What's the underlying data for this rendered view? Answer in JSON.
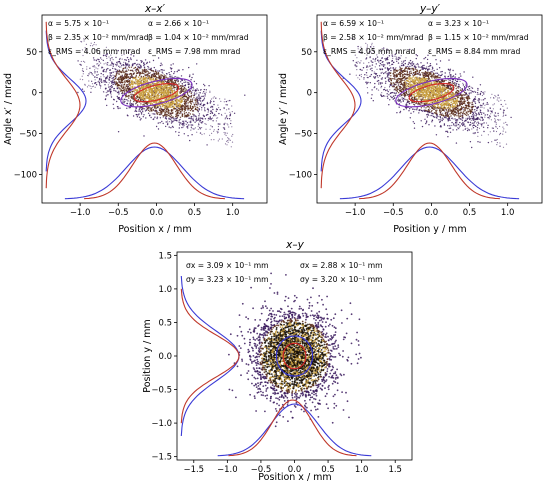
{
  "chart_data": [
    {
      "type": "scatter",
      "title": "x–x′",
      "xlabel": "Position x / mm",
      "ylabel": "Angle x′ / mrad",
      "xlim": [
        -1.5,
        1.45
      ],
      "ylim": [
        -135,
        95
      ],
      "xticks": [
        -1.0,
        -0.5,
        0.0,
        0.5,
        1.0
      ],
      "xticklabels": [
        "−1.0",
        "−0.5",
        "0.0",
        "0.5",
        "1.0"
      ],
      "yticks": [
        -100,
        -50,
        0,
        50
      ],
      "yticklabels": [
        "−100",
        "−50",
        "0",
        "50"
      ],
      "annotations": [
        {
          "text": "α = 5.75 × 10⁻¹"
        },
        {
          "text": "α = 2.66 × 10⁻¹"
        },
        {
          "text": "β = 2.35 × 10⁻² mm/mrad"
        },
        {
          "text": "β = 1.04 × 10⁻² mm/mrad"
        },
        {
          "text": "ε_RMS = 4.06 mm mrad"
        },
        {
          "text": "ε_RMS = 7.98 mm mrad"
        }
      ],
      "distribution": {
        "sx": 0.32,
        "sy": 18,
        "rho": -0.55,
        "n": 2600
      },
      "ellipses": [
        {
          "color": "#d62728",
          "cx": 0.0,
          "cy": 0,
          "rx": 0.3,
          "ry": 9,
          "rot": -14
        },
        {
          "color": "#7b2fbf",
          "cx": 0.0,
          "cy": 0,
          "rx": 0.48,
          "ry": 14,
          "rot": -14
        }
      ],
      "grid": false
    },
    {
      "type": "scatter",
      "title": "y–y′",
      "xlabel": "Position y / mm",
      "ylabel": "Angle y′ / mrad",
      "xlim": [
        -1.5,
        1.45
      ],
      "ylim": [
        -135,
        95
      ],
      "xticks": [
        -1.0,
        -0.5,
        0.0,
        0.5,
        1.0
      ],
      "xticklabels": [
        "−1.0",
        "−0.5",
        "0.0",
        "0.5",
        "1.0"
      ],
      "yticks": [
        -100,
        -50,
        0,
        50
      ],
      "yticklabels": [
        "−100",
        "−50",
        "0",
        "50"
      ],
      "annotations": [
        {
          "text": "α = 6.59 × 10⁻¹"
        },
        {
          "text": "α = 3.23 × 10⁻¹"
        },
        {
          "text": "β = 2.58 × 10⁻² mm/mrad"
        },
        {
          "text": "β = 1.15 × 10⁻² mm/mrad"
        },
        {
          "text": "ε_RMS = 4.05 mm mrad"
        },
        {
          "text": "ε_RMS = 8.84 mm mrad"
        }
      ],
      "distribution": {
        "sx": 0.32,
        "sy": 18,
        "rho": -0.6,
        "n": 2600
      },
      "ellipses": [
        {
          "color": "#d62728",
          "cx": 0.0,
          "cy": 0,
          "rx": 0.3,
          "ry": 9,
          "rot": -14
        },
        {
          "color": "#7b2fbf",
          "cx": 0.0,
          "cy": 0,
          "rx": 0.48,
          "ry": 14,
          "rot": -14
        }
      ],
      "grid": false
    },
    {
      "type": "scatter",
      "title": "x–y",
      "xlabel": "Position x / mm",
      "ylabel": "Position y / mm",
      "xlim": [
        -1.75,
        1.75
      ],
      "ylim": [
        -1.55,
        1.55
      ],
      "xticks": [
        -1.5,
        -1.0,
        -0.5,
        0.0,
        0.5,
        1.0,
        1.5
      ],
      "xticklabels": [
        "−1.5",
        "−1.0",
        "−0.5",
        "0.0",
        "0.5",
        "1.0",
        "1.5"
      ],
      "yticks": [
        -1.5,
        -1.0,
        -0.5,
        0.0,
        0.5,
        1.0,
        1.5
      ],
      "yticklabels": [
        "−1.5",
        "−1.0",
        "−0.5",
        "0.0",
        "0.5",
        "1.0",
        "1.5"
      ],
      "annotations": [
        {
          "text": "σx = 3.09 × 10⁻¹ mm"
        },
        {
          "text": "σx = 2.88 × 10⁻¹ mm"
        },
        {
          "text": "σy = 3.23 × 10⁻¹ mm"
        },
        {
          "text": "σy = 3.20 × 10⁻¹ mm"
        }
      ],
      "distribution": {
        "sx": 0.3,
        "sy": 0.32,
        "rho": 0,
        "n": 3000
      },
      "ellipses": [
        {
          "color": "#d62728",
          "cx": 0.0,
          "cy": 0.0,
          "rx": 0.17,
          "ry": 0.19,
          "rot": 0
        },
        {
          "color": "#3030d0",
          "cx": 0.0,
          "cy": 0.0,
          "rx": 0.27,
          "ry": 0.3,
          "rot": 0
        }
      ],
      "grid": false
    }
  ],
  "colors": {
    "profile_blue": "#3a3ad6",
    "profile_red": "#c0392b",
    "scatter_core": "#c49a3a",
    "scatter_halo": "#3b1b5e"
  }
}
